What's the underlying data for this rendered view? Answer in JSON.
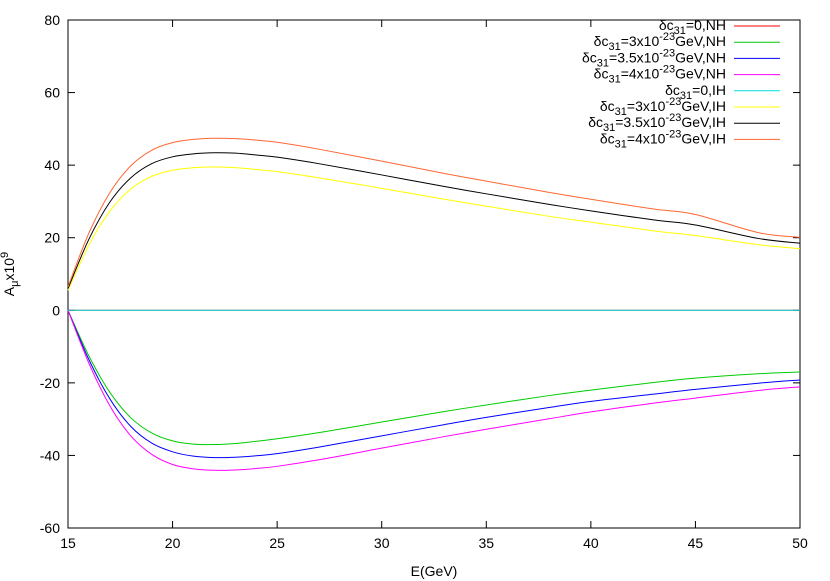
{
  "chart_data": {
    "type": "line",
    "title": "",
    "xlabel": "E(GeV)",
    "ylabel_base": "A",
    "ylabel_sub": "μ",
    "ylabel_mid": "x10",
    "ylabel_sup": "9",
    "xlim": [
      15,
      50
    ],
    "ylim": [
      -60,
      80
    ],
    "xticks": [
      15,
      20,
      25,
      30,
      35,
      40,
      45,
      50
    ],
    "yticks": [
      -60,
      -40,
      -20,
      0,
      20,
      40,
      60,
      80
    ],
    "grid": false,
    "legend_position": "top-right",
    "x": [
      15,
      16,
      17,
      18,
      19,
      20,
      21,
      22,
      23,
      24,
      25,
      27,
      30,
      33,
      35,
      38,
      40,
      43,
      45,
      48,
      50
    ],
    "series": [
      {
        "label": {
          "pre": "δc",
          "sub": "31",
          "mid": "=0,NH",
          "sup": "",
          "post": ""
        },
        "color": "#ff0000",
        "values": [
          0,
          0,
          0,
          0,
          0,
          0,
          0,
          0,
          0,
          0,
          0,
          0,
          0,
          0,
          0,
          0,
          0,
          0,
          0,
          0,
          0
        ]
      },
      {
        "label": {
          "pre": "δc",
          "sub": "31",
          "mid": "=3x10",
          "sup": "-23",
          "post": "GeV,NH"
        },
        "color": "#00cc00",
        "values": [
          0,
          -12.6,
          -22.6,
          -29.6,
          -33.8,
          -36.0,
          -36.9,
          -37.0,
          -36.7,
          -36.1,
          -35.4,
          -33.7,
          -30.8,
          -27.9,
          -26.1,
          -23.5,
          -22.0,
          -19.9,
          -18.7,
          -17.5,
          -17.0
        ]
      },
      {
        "label": {
          "pre": "δc",
          "sub": "31",
          "mid": "=3.5x10",
          "sup": "-23",
          "post": "GeV,NH"
        },
        "color": "#0000ff",
        "values": [
          0,
          -13.6,
          -24.4,
          -32.0,
          -36.6,
          -39.0,
          -40.2,
          -40.6,
          -40.5,
          -40.1,
          -39.5,
          -37.7,
          -34.6,
          -31.5,
          -29.5,
          -26.8,
          -25.1,
          -23.1,
          -21.8,
          -20.1,
          -19.2
        ]
      },
      {
        "label": {
          "pre": "δc",
          "sub": "31",
          "mid": "=4x10",
          "sup": "-23",
          "post": "GeV,NH"
        },
        "color": "#ff00ff",
        "values": [
          0,
          -14.6,
          -26.3,
          -34.6,
          -39.7,
          -42.5,
          -43.7,
          -44.1,
          -44.0,
          -43.6,
          -43.0,
          -41.2,
          -38.0,
          -34.8,
          -32.8,
          -29.9,
          -28.0,
          -25.6,
          -24.2,
          -22.1,
          -21.1
        ]
      },
      {
        "label": {
          "pre": "δc",
          "sub": "31",
          "mid": "=0,IH",
          "sup": "",
          "post": ""
        },
        "color": "#00e0e0",
        "values": [
          0,
          0,
          0,
          0,
          0,
          0,
          0,
          0,
          0,
          0,
          0,
          0,
          0,
          0,
          0,
          0,
          0,
          0,
          0,
          0,
          0
        ]
      },
      {
        "label": {
          "pre": "δc",
          "sub": "31",
          "mid": "=3x10",
          "sup": "-23",
          "post": "GeV,IH"
        },
        "color": "#ffff00",
        "values": [
          5.5,
          18.0,
          27.3,
          33.4,
          36.9,
          38.6,
          39.3,
          39.5,
          39.3,
          38.8,
          38.2,
          36.5,
          33.6,
          30.6,
          28.7,
          25.9,
          24.3,
          21.9,
          20.6,
          18.1,
          17.0
        ]
      },
      {
        "label": {
          "pre": "δc",
          "sub": "31",
          "mid": "=3.5x10",
          "sup": "-23",
          "post": "GeV,IH"
        },
        "color": "#000000",
        "values": [
          6.0,
          19.6,
          29.8,
          36.5,
          40.4,
          42.3,
          43.1,
          43.4,
          43.3,
          42.8,
          42.2,
          40.4,
          37.3,
          34.1,
          32.1,
          29.2,
          27.4,
          24.9,
          23.5,
          19.8,
          18.5
        ]
      },
      {
        "label": {
          "pre": "δc",
          "sub": "31",
          "mid": "=4x10",
          "sup": "-23",
          "post": "GeV,IH"
        },
        "color": "#ff6633",
        "values": [
          6.5,
          21.3,
          32.4,
          39.8,
          44.1,
          46.2,
          47.1,
          47.4,
          47.3,
          46.9,
          46.3,
          44.4,
          41.1,
          37.7,
          35.6,
          32.5,
          30.6,
          27.9,
          26.4,
          21.4,
          20.1
        ]
      }
    ]
  }
}
